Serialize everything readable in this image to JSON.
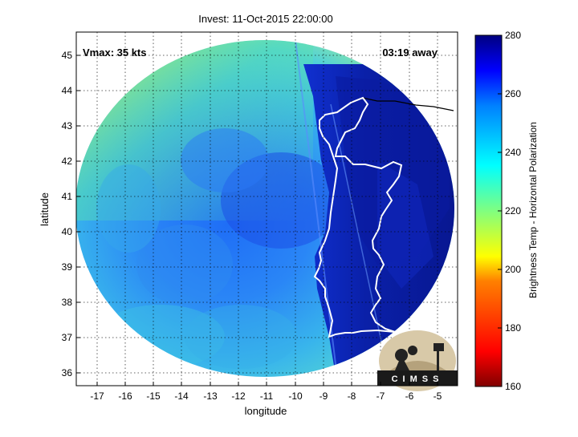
{
  "title": "Invest: 11-Oct-2015 22:00:00",
  "vmax_label": "Vmax: 35 kts",
  "time_away": "03:19 away",
  "xlabel": "longitude",
  "ylabel": "latitude",
  "x_ticks": [
    "-17",
    "-16",
    "-15",
    "-14",
    "-13",
    "-12",
    "-11",
    "-10",
    "-9",
    "-8",
    "-7",
    "-6",
    "-5"
  ],
  "y_ticks": [
    "36",
    "37",
    "38",
    "39",
    "40",
    "41",
    "42",
    "43",
    "44",
    "45"
  ],
  "colorbar": {
    "label": "Brightness Temp - Horizontal Polarization",
    "ticks": [
      "280",
      "260",
      "240",
      "220",
      "200",
      "180",
      "160"
    ],
    "min": 160,
    "max": 280
  },
  "logo_text": "CIMSS",
  "colors": {
    "land_outline": "#ffffff",
    "coast_black": "#000000",
    "cool_high": "#0a1a8c",
    "mid_blue": "#1e5cff",
    "cyan": "#1ec8ee",
    "green_yellow": "#b6f062"
  }
}
